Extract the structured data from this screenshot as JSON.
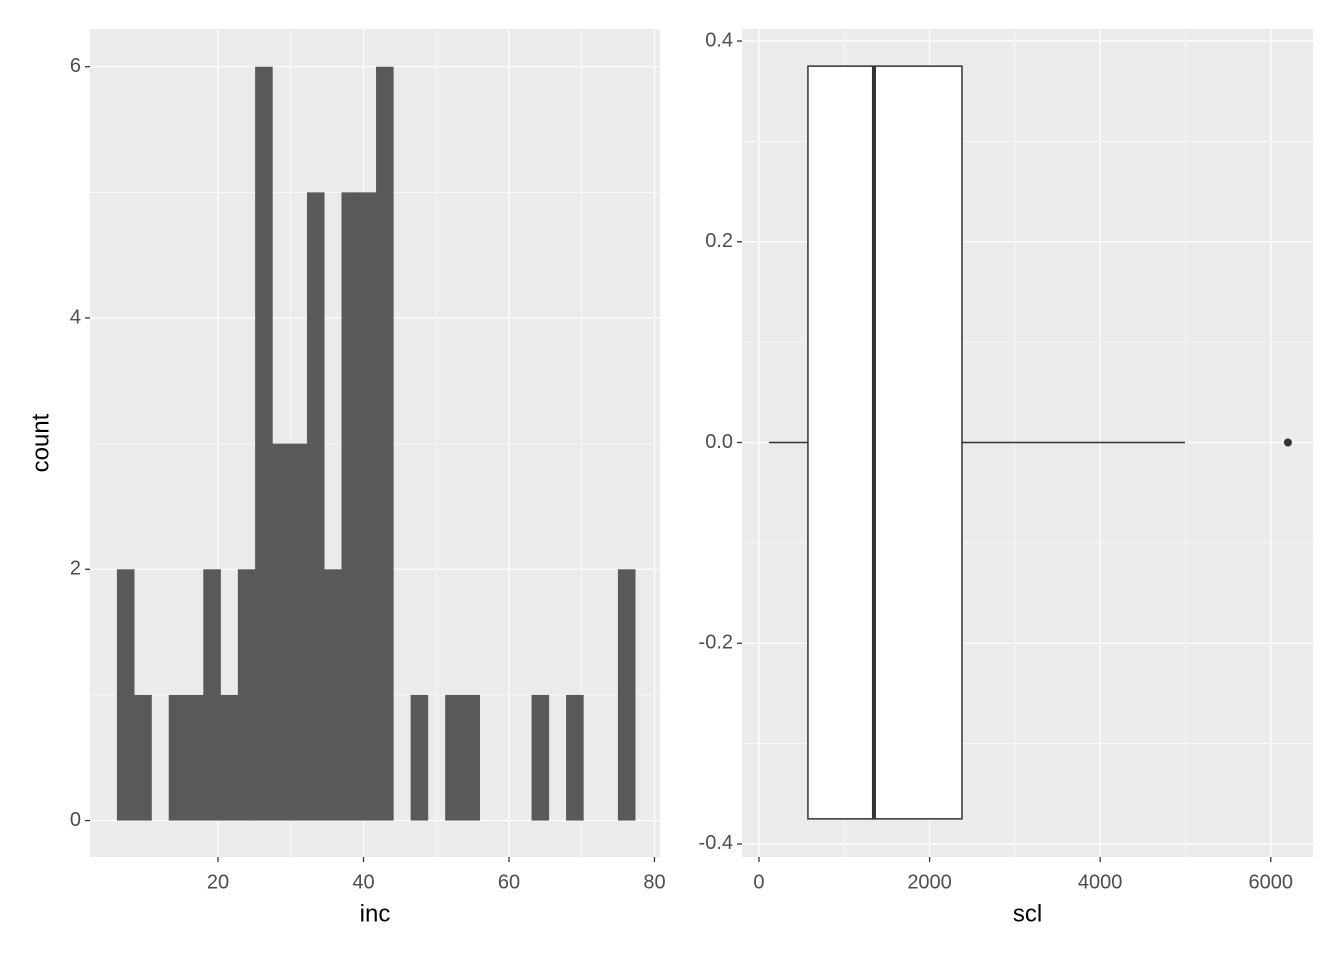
{
  "chart_data": [
    {
      "type": "histogram",
      "x_label": "inc",
      "y_label": "count",
      "color": "#595959",
      "grid": true,
      "bins": [
        6.1,
        8.475,
        10.85,
        13.225,
        15.6,
        17.975,
        20.35,
        22.725,
        25.1,
        27.475,
        29.85,
        32.225,
        34.6,
        36.975,
        39.35,
        41.725,
        44.1,
        46.475,
        48.85,
        51.225,
        53.6,
        55.975,
        58.35,
        60.725,
        63.1,
        65.475,
        67.85,
        70.225,
        72.6,
        74.975,
        77.35
      ],
      "counts": [
        2,
        1,
        0,
        1,
        1,
        2,
        1,
        2,
        6,
        3,
        3,
        5,
        2,
        5,
        5,
        6,
        0,
        1,
        0,
        1,
        1,
        0,
        0,
        0,
        1,
        0,
        1,
        0,
        0,
        2
      ],
      "xlim": [
        2.4,
        80.76
      ],
      "ylim": [
        -0.29,
        6.3
      ],
      "xticks": [
        20,
        40,
        60,
        80
      ],
      "yticks": [
        0,
        2,
        4,
        6
      ]
    },
    {
      "type": "box",
      "x_label": "scl",
      "grid": true,
      "box_fill": "#ffffff",
      "line_color": "#333333",
      "min": 117,
      "q1": 574,
      "median": 1348,
      "q3": 2380,
      "max": 4994,
      "outliers": [
        6201
      ],
      "box_width": 0.75,
      "xlim": [
        -199,
        6495
      ],
      "ylim": [
        -0.413,
        0.412
      ],
      "xticks": [
        0,
        2000,
        4000,
        6000
      ],
      "yticks": [
        -0.4,
        -0.2,
        {
          "value": 0,
          "label": "0.0"
        },
        0.2,
        0.4
      ]
    }
  ]
}
